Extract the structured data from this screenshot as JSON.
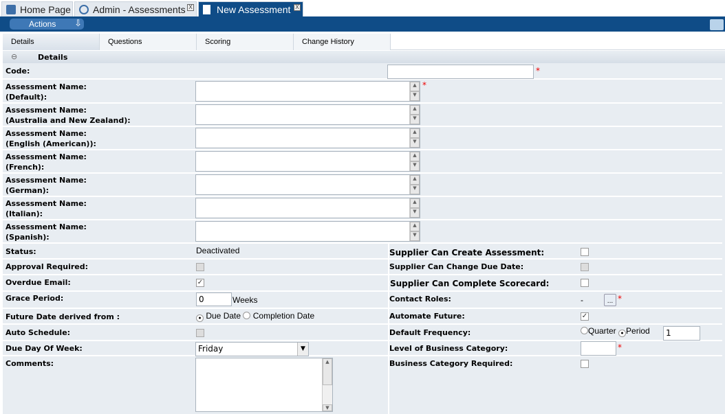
{
  "tabs": [
    {
      "label": "Home Page",
      "icon": "home-cube-icon"
    },
    {
      "label": "Admin - Assessments",
      "icon": "gear-icon",
      "close": "X"
    },
    {
      "label": "New Assessment",
      "icon": "document-icon",
      "close": "X",
      "active": true
    }
  ],
  "actions_label": "Actions",
  "subtabs": [
    "Details",
    "Questions",
    "Scoring",
    "Change History"
  ],
  "section_title": "Details",
  "fields": {
    "code": "Code:",
    "names": [
      {
        "l1": "Assessment Name:",
        "l2": "(Default):"
      },
      {
        "l1": "Assessment Name:",
        "l2": "(Australia and New Zealand):"
      },
      {
        "l1": "Assessment Name:",
        "l2": "(English (American)):"
      },
      {
        "l1": "Assessment Name:",
        "l2": "(French):"
      },
      {
        "l1": "Assessment Name:",
        "l2": "(German):"
      },
      {
        "l1": "Assessment Name:",
        "l2": "(Italian):"
      },
      {
        "l1": "Assessment Name:",
        "l2": "(Spanish):"
      }
    ],
    "status": "Status:",
    "status_value": "Deactivated",
    "approval": "Approval Required:",
    "overdue": "Overdue Email:",
    "grace": "Grace Period:",
    "grace_value": "0",
    "grace_unit": "Weeks",
    "future": "Future Date derived from :",
    "future_opt1": "Due Date",
    "future_opt2": "Completion Date",
    "auto": "Auto Schedule:",
    "dueday": "Due Day Of Week:",
    "dueday_value": "Friday",
    "comments": "Comments:",
    "sup_create": "Supplier Can Create Assessment:",
    "sup_change": "Supplier Can Change Due Date:",
    "sup_complete": "Supplier Can Complete Scorecard:",
    "contact": "Contact Roles:",
    "contact_value": "-",
    "contact_btn": "...",
    "automate": "Automate Future:",
    "freq": "Default Frequency:",
    "freq_opt1": "Quarter",
    "freq_opt2": "Period",
    "freq_value": "1",
    "level": "Level of Business Category:",
    "bcreq": "Business Category Required:"
  },
  "required_mark": "*",
  "colors": {
    "brand": "#0f4c87",
    "required": "#e00000"
  }
}
